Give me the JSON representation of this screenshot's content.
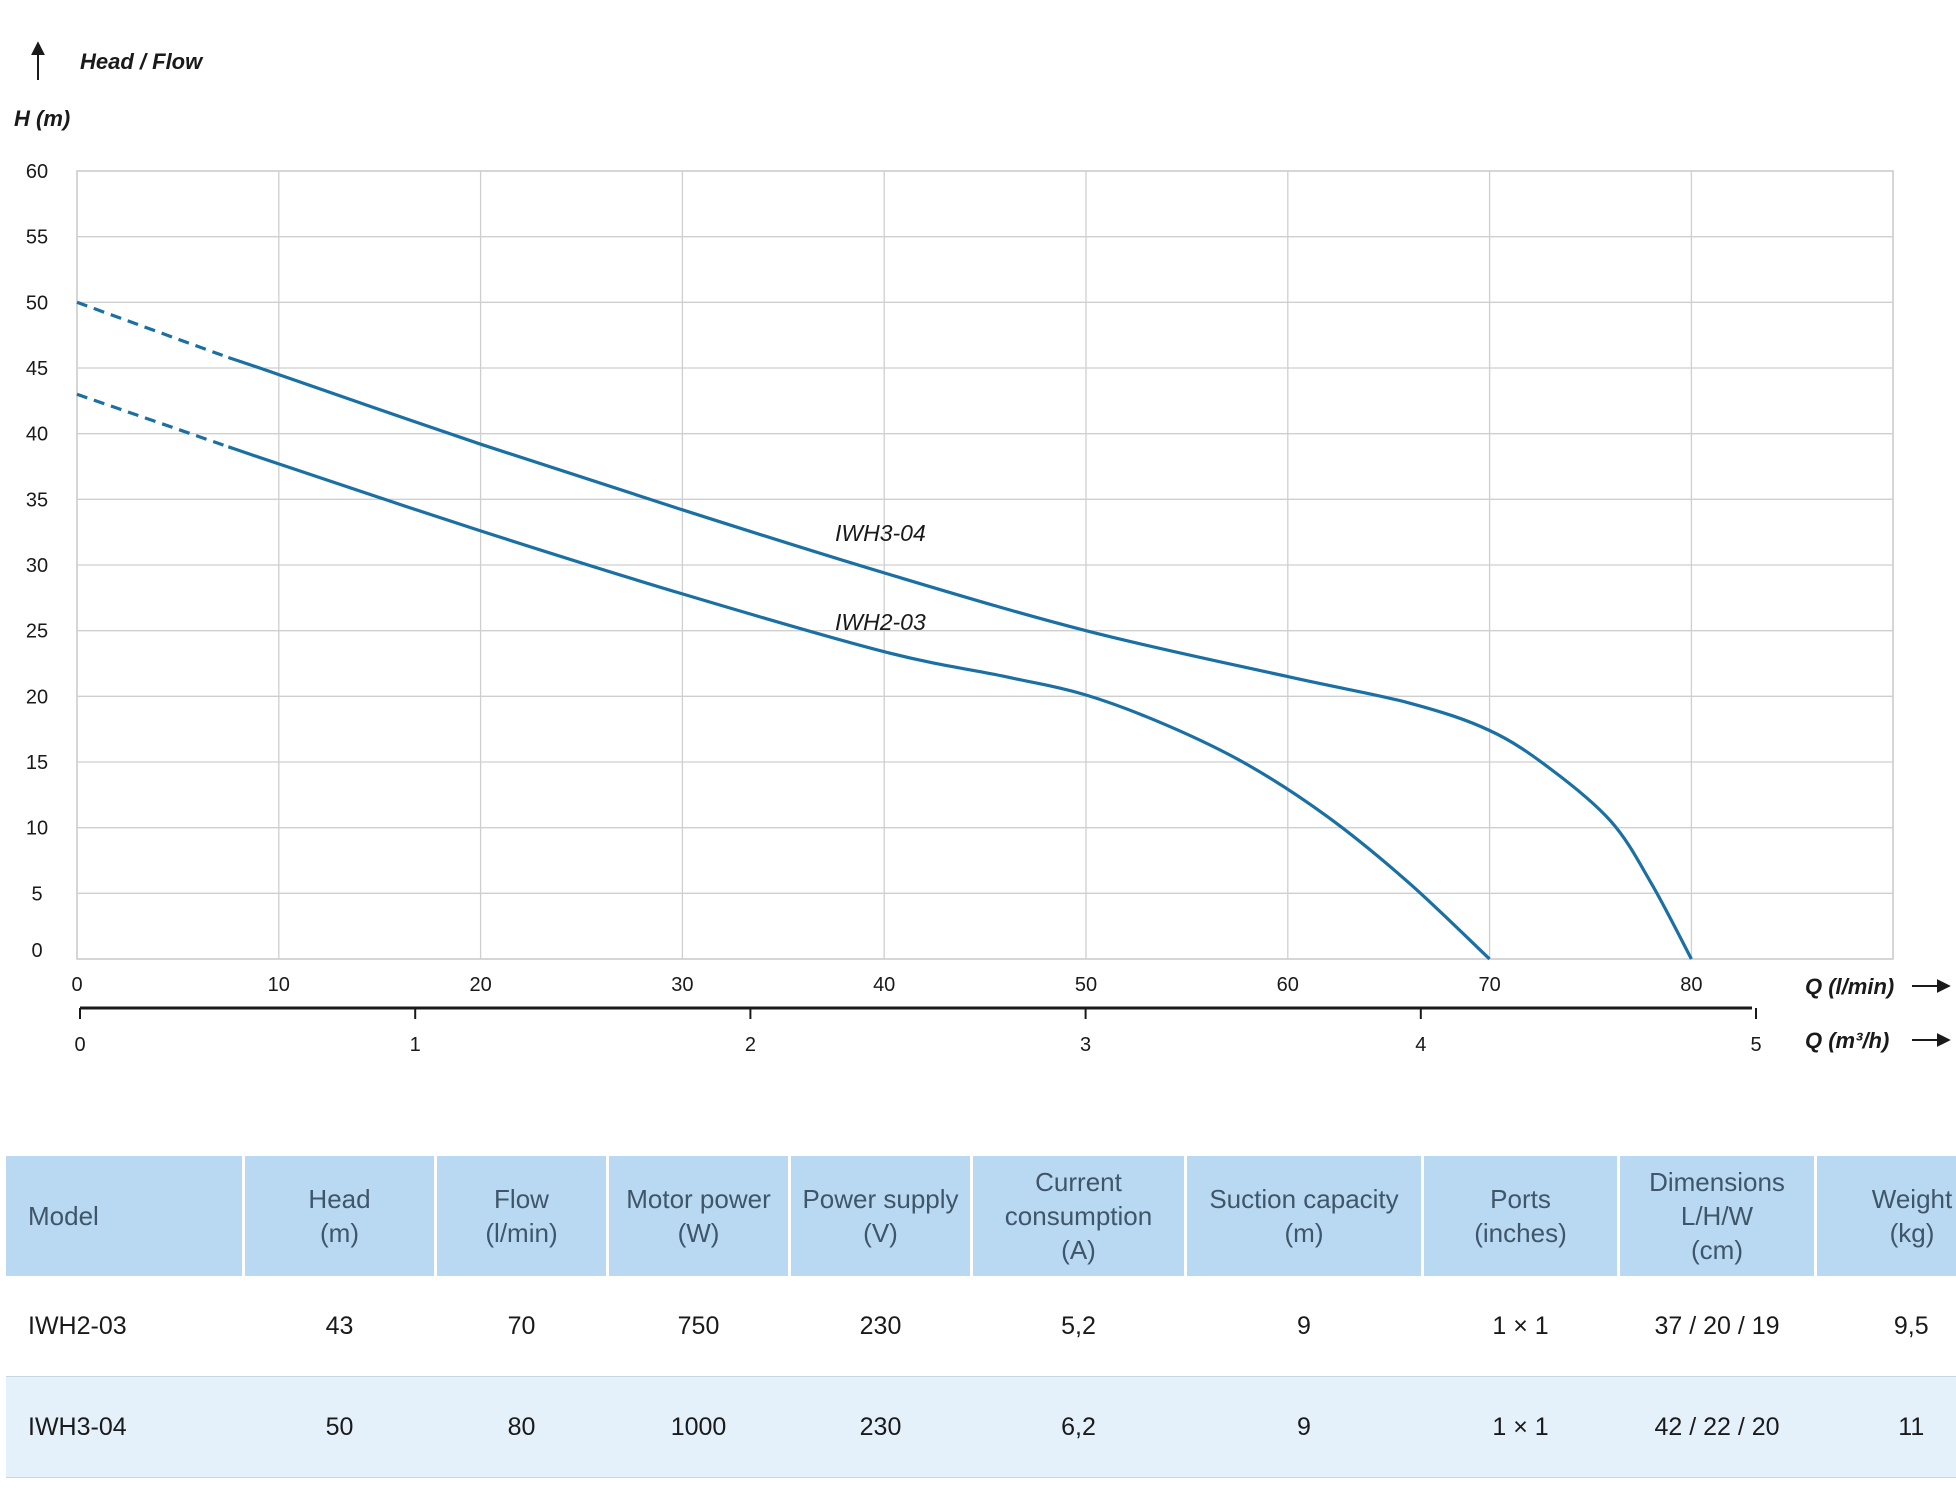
{
  "chart_data": {
    "type": "line",
    "y_axis_title": "Head / Flow",
    "ylabel": "H (m)",
    "xlabel": "Q (l/min)",
    "x2label": "Q (m³/h)",
    "xlim": [
      0,
      90
    ],
    "ylim": [
      0,
      60
    ],
    "x_ticks": [
      0,
      10,
      20,
      30,
      40,
      50,
      60,
      70,
      80
    ],
    "y_ticks": [
      0,
      5,
      10,
      15,
      20,
      25,
      30,
      35,
      40,
      45,
      50,
      55,
      60
    ],
    "x2_ticks": [
      0,
      1,
      2,
      3,
      4,
      5
    ],
    "grid": true,
    "series_color": "#1a6fa3",
    "series": [
      {
        "name": "IWH3-04",
        "dashed_until_x": 7.5,
        "x": [
          0,
          7.5,
          10,
          20,
          30,
          40,
          50,
          60,
          66,
          70,
          73,
          76,
          78,
          80
        ],
        "y": [
          50,
          45.8,
          44.5,
          39.2,
          34.2,
          29.4,
          25,
          21.5,
          19.5,
          17.4,
          14.5,
          10.5,
          5.8,
          0
        ]
      },
      {
        "name": "IWH2-03",
        "dashed_until_x": 7.5,
        "x": [
          0,
          7.5,
          10,
          20,
          30,
          40,
          46,
          50,
          54,
          58,
          62,
          66,
          70
        ],
        "y": [
          43,
          39,
          37.7,
          32.6,
          27.8,
          23.4,
          21.5,
          20.1,
          17.8,
          14.8,
          10.8,
          5.8,
          0
        ]
      }
    ]
  },
  "table": {
    "headers": [
      [
        "Model"
      ],
      [
        "Head",
        "(m)"
      ],
      [
        "Flow",
        "(l/min)"
      ],
      [
        "Motor power",
        "(W)"
      ],
      [
        "Power supply",
        "(V)"
      ],
      [
        "Current",
        "consumption",
        "(A)"
      ],
      [
        "Suction capacity",
        "(m)"
      ],
      [
        "Ports",
        "(inches)"
      ],
      [
        "Dimensions",
        "L/H/W",
        "(cm)"
      ],
      [
        "Weight",
        "(kg)"
      ]
    ],
    "rows": [
      [
        "IWH2-03",
        "43",
        "70",
        "750",
        "230",
        "5,2",
        "9",
        "1 × 1",
        "37 / 20 / 19",
        "9,5"
      ],
      [
        "IWH3-04",
        "50",
        "80",
        "1000",
        "230",
        "6,2",
        "9",
        "1 × 1",
        "42 / 22 / 20",
        "11"
      ]
    ]
  }
}
